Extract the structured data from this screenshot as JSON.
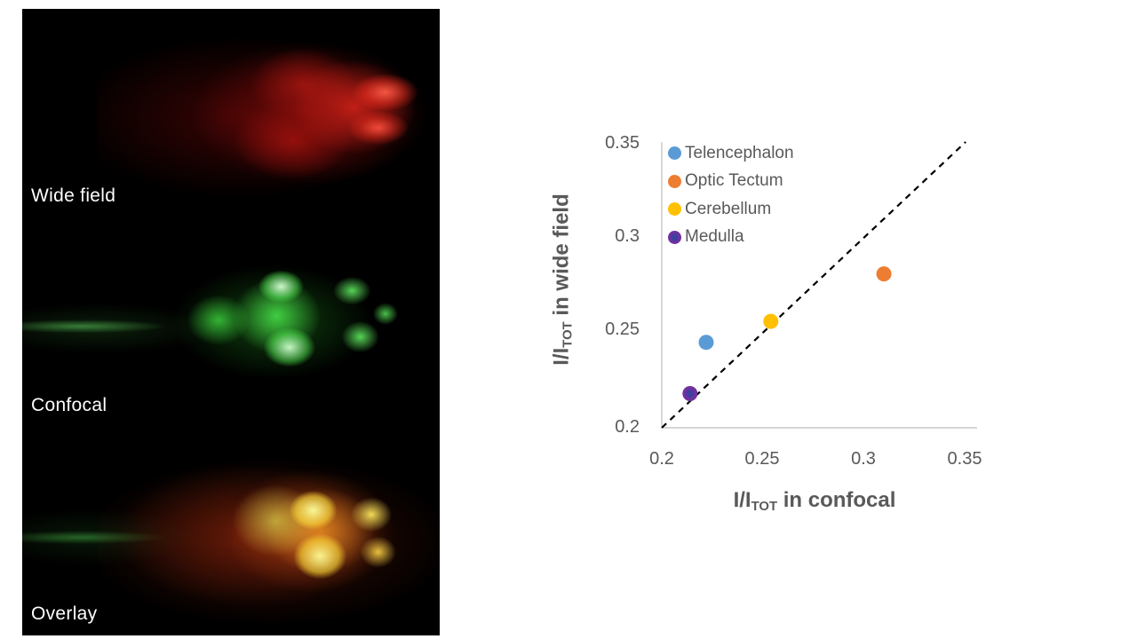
{
  "microscopy_figure": {
    "background": "#000000",
    "label_color": "#ffffff",
    "panels": [
      {
        "label": "Wide field",
        "channel": "red-fluorescence"
      },
      {
        "label": "Confocal",
        "channel": "green-fluorescence"
      },
      {
        "label": "Overlay",
        "channel": "red-green-merge"
      }
    ]
  },
  "chart_data": {
    "type": "scatter",
    "xlabel": {
      "pre": "I/I",
      "sub": "TOT",
      "post": " in confocal"
    },
    "ylabel": {
      "pre": "I/I",
      "sub": "TOT",
      "post": " in wide field"
    },
    "xlim": [
      0.2,
      0.35
    ],
    "ylim": [
      0.2,
      0.35
    ],
    "xticks": [
      "0.2",
      "0.25",
      "0.3",
      "0.35"
    ],
    "yticks": [
      "0.2",
      "0.25",
      "0.3",
      "0.35"
    ],
    "grid": false,
    "legend_position": "top-left-inside",
    "axis_color": "#C9C9C9",
    "text_color": "#595959",
    "marker_radius": 8.5,
    "identity_line": {
      "from": [
        0.2,
        0.2
      ],
      "to": [
        0.3505,
        0.3505
      ],
      "style": "dashed",
      "color": "#000000"
    },
    "series": [
      {
        "name": "Telencephalon",
        "color": "#5B9BD5",
        "points": [
          [
            0.222,
            0.245
          ]
        ]
      },
      {
        "name": "Optic Tectum",
        "color": "#ED7D31",
        "points": [
          [
            0.31,
            0.281
          ]
        ]
      },
      {
        "name": "Cerebellum",
        "color": "#FFC000",
        "points": [
          [
            0.254,
            0.256
          ]
        ]
      },
      {
        "name": "Medulla",
        "color": "#7030A0",
        "inner_color": "#3F3F9E",
        "points": [
          [
            0.214,
            0.218
          ]
        ]
      }
    ]
  }
}
